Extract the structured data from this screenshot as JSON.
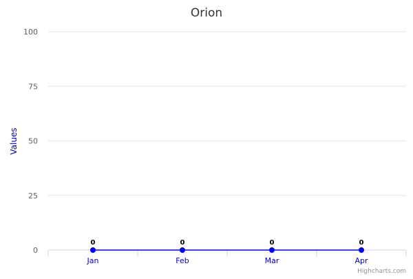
{
  "chart_data": {
    "type": "line",
    "title": "Orion",
    "xlabel": "",
    "ylabel": "Values",
    "categories": [
      "Jan",
      "Feb",
      "Mar",
      "Apr"
    ],
    "series": [
      {
        "values": [
          0,
          0,
          0,
          0
        ],
        "color": "#0000ff"
      }
    ],
    "ylim": [
      0,
      100
    ],
    "yticks": [
      0,
      25,
      50,
      75,
      100
    ],
    "grid": true,
    "data_labels": true,
    "colors": {
      "title": "#333333",
      "axis_label": "#0000cc",
      "gridline": "#e6e6e6",
      "axis_line": "#ccd6eb"
    }
  },
  "credits": "Highcharts.com"
}
